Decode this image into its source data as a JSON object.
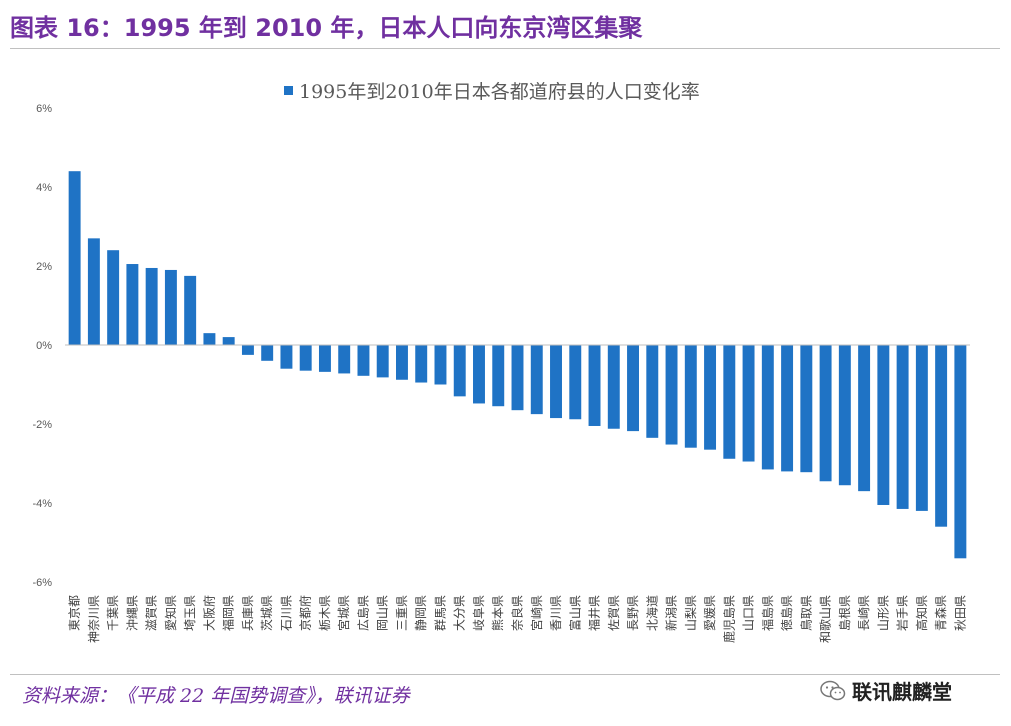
{
  "header": {
    "title": "图表 16：1995 年到 2010 年，日本人口向东京湾区集聚"
  },
  "footer": {
    "source": "资料来源：《平成 22 年国势调查》，联讯证券"
  },
  "brand": {
    "name": "联讯麒麟堂",
    "icon": "wechat-icon"
  },
  "colors": {
    "bar": "#1f73c5",
    "title": "#7030a0",
    "axis_text": "#595959",
    "rule": "#c0c0c0"
  },
  "chart_data": {
    "type": "bar",
    "title": "",
    "legend": "1995年到2010年日本各都道府县的人口变化率",
    "legend_position": "top",
    "ylabel": "",
    "xlabel": "",
    "ylim": [
      -6,
      6
    ],
    "yticks": [
      "6%",
      "4%",
      "2%",
      "0%",
      "-2%",
      "-4%",
      "-6%"
    ],
    "ytick_values": [
      6,
      4,
      2,
      0,
      -2,
      -4,
      -6
    ],
    "grid": false,
    "categories": [
      "東京都",
      "神奈川県",
      "千葉県",
      "沖縄県",
      "滋賀県",
      "愛知県",
      "埼玉県",
      "大阪府",
      "福岡県",
      "兵庫県",
      "茨城県",
      "石川県",
      "京都府",
      "栃木県",
      "宮城県",
      "広島県",
      "岡山県",
      "三重県",
      "静岡県",
      "群馬県",
      "大分県",
      "岐阜県",
      "熊本県",
      "奈良県",
      "宮崎県",
      "香川県",
      "富山県",
      "福井県",
      "佐賀県",
      "長野県",
      "北海道",
      "新潟県",
      "山梨県",
      "愛媛県",
      "鹿児島県",
      "山口県",
      "福島県",
      "徳島県",
      "鳥取県",
      "和歌山県",
      "島根県",
      "長崎県",
      "山形県",
      "岩手県",
      "高知県",
      "青森県",
      "秋田県"
    ],
    "values": [
      4.4,
      2.7,
      2.4,
      2.05,
      1.95,
      1.9,
      1.75,
      0.3,
      0.2,
      -0.25,
      -0.4,
      -0.6,
      -0.65,
      -0.68,
      -0.72,
      -0.78,
      -0.82,
      -0.88,
      -0.95,
      -1.0,
      -1.3,
      -1.48,
      -1.55,
      -1.65,
      -1.75,
      -1.85,
      -1.88,
      -2.05,
      -2.12,
      -2.18,
      -2.35,
      -2.52,
      -2.6,
      -2.65,
      -2.88,
      -2.95,
      -3.15,
      -3.2,
      -3.22,
      -3.45,
      -3.55,
      -3.7,
      -4.05,
      -4.15,
      -4.2,
      -4.6,
      -5.4
    ]
  }
}
